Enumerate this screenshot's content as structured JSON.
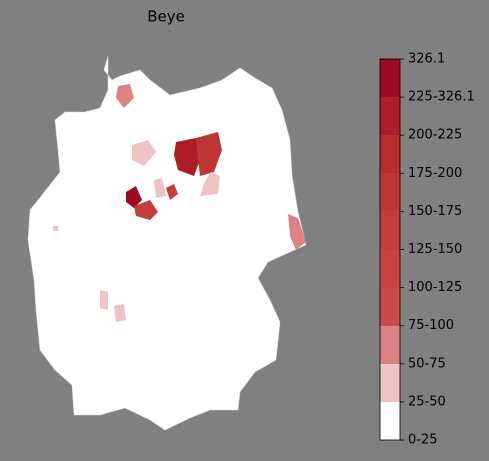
{
  "title": "Beye",
  "colorbar": {
    "labels": [
      "0-25",
      "25-50",
      "50-75",
      "75-100",
      "100-125",
      "125-150",
      "150-175",
      "175-200",
      "200-225",
      "225-326.1",
      "326.1"
    ],
    "colors": [
      "#ffffff",
      "#efc3c3",
      "#dc8282",
      "#cd4848",
      "#c84242",
      "#c43c3c",
      "#be3535",
      "#b82c2e",
      "#ad1c27",
      "#9e0a1e"
    ]
  }
}
